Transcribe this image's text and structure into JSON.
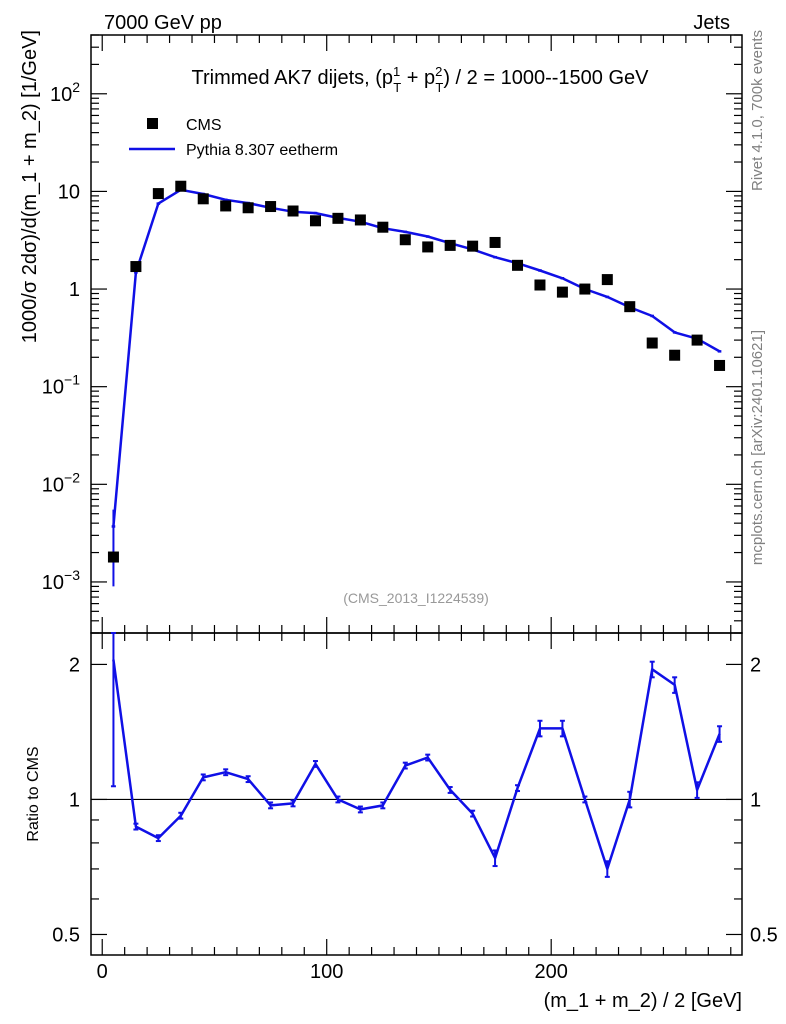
{
  "header": {
    "left": "7000 GeV pp",
    "right": "Jets"
  },
  "side_labels": {
    "rivet": "Rivet 4.1.0,  700k events",
    "mcplots": "mcplots.cern.ch [arXiv:2401.10621]"
  },
  "analysis_id": "(CMS_2013_I1224539)",
  "legend": {
    "data_label": "CMS",
    "mc_label": "Pythia 8.307 eetherm"
  },
  "colors": {
    "mc": "#1010e6",
    "data": "#000000",
    "analysis_id": "#999999",
    "side": "#808080"
  },
  "chart_data": [
    {
      "type": "scatter",
      "title": "Trimmed AK7 dijets, (p_T^1 + p_T^2) / 2 = 1000--1500 GeV",
      "title_parts": {
        "pre": "Trimmed AK7 dijets, (p",
        "sup1": "1",
        "sub1": "T",
        "mid": " + p",
        "sup2": "2",
        "sub2": "T",
        "post": ") / 2 = 1000--1500 GeV"
      },
      "ylabel": "1000/σ   2dσ)/d(m_1 + m_2) [1/GeV]",
      "yscale": "log",
      "ylim": [
        0.0003,
        400
      ],
      "xlim": [
        -5,
        285
      ],
      "ytick_labels": [
        {
          "value": 0.001,
          "base": "10",
          "exp": "−3"
        },
        {
          "value": 0.01,
          "base": "10",
          "exp": "−2"
        },
        {
          "value": 0.1,
          "base": "10",
          "exp": "−1"
        },
        {
          "value": 1,
          "base": "1",
          "exp": ""
        },
        {
          "value": 10,
          "base": "10",
          "exp": ""
        },
        {
          "value": 100,
          "base": "10",
          "exp": "2"
        }
      ],
      "x": [
        5,
        15,
        25,
        35,
        45,
        55,
        65,
        75,
        85,
        95,
        105,
        115,
        125,
        135,
        145,
        155,
        165,
        175,
        185,
        195,
        205,
        215,
        225,
        235,
        245,
        255,
        265,
        275
      ],
      "series": [
        {
          "name": "CMS",
          "values": [
            0.0018,
            1.7,
            9.5,
            11.3,
            8.4,
            7.1,
            6.8,
            7.0,
            6.3,
            5.0,
            5.3,
            5.1,
            4.3,
            3.2,
            2.7,
            2.8,
            2.75,
            3.0,
            1.75,
            1.1,
            0.93,
            1.0,
            1.25,
            0.66,
            0.28,
            0.21,
            0.3,
            0.165
          ]
        },
        {
          "name": "Pythia 8.307 eetherm",
          "values": [
            0.0037,
            1.48,
            7.5,
            10.4,
            9.4,
            8.2,
            7.6,
            6.8,
            6.2,
            6.0,
            5.35,
            4.9,
            4.2,
            3.85,
            3.45,
            2.95,
            2.55,
            2.12,
            1.84,
            1.55,
            1.29,
            1.0,
            0.83,
            0.65,
            0.53,
            0.36,
            0.31,
            0.23
          ]
        }
      ]
    },
    {
      "type": "line",
      "ylabel": "Ratio to CMS",
      "xlabel": "(m_1 + m_2) / 2 [GeV]",
      "yscale": "log",
      "ylim": [
        0.45,
        2.35
      ],
      "xlim": [
        -5,
        285
      ],
      "ytick_labels": [
        "0.5",
        "1",
        "2"
      ],
      "ytick_values": [
        0.5,
        1,
        2
      ],
      "xtick_labels": [
        "0",
        "100",
        "200"
      ],
      "xtick_values": [
        0,
        100,
        200
      ],
      "reference_line": 1,
      "x": [
        5,
        15,
        25,
        35,
        45,
        55,
        65,
        75,
        85,
        95,
        105,
        115,
        125,
        135,
        145,
        155,
        165,
        175,
        185,
        195,
        205,
        215,
        225,
        235,
        245,
        255,
        265,
        275
      ],
      "series": [
        {
          "name": "Pythia 8.307 eetherm / CMS",
          "values": [
            2.05,
            0.87,
            0.82,
            0.92,
            1.12,
            1.15,
            1.11,
            0.97,
            0.98,
            1.2,
            1.0,
            0.95,
            0.97,
            1.19,
            1.24,
            1.05,
            0.93,
            0.74,
            1.06,
            1.44,
            1.44,
            1.0,
            0.7,
            1.0,
            1.95,
            1.8,
            1.05,
            1.4
          ]
        }
      ]
    }
  ]
}
